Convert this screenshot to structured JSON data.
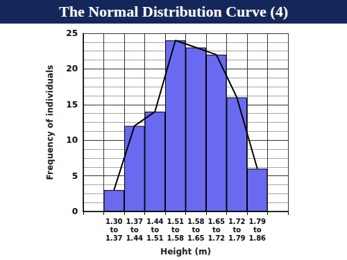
{
  "chart_data": {
    "type": "bar",
    "title": "The Normal Distribution Curve (4)",
    "x_label": "Height (m)",
    "y_label": "Frequency of individuals",
    "categories": [
      null,
      "1.30\nto\n1.37",
      "1.37\nto\n1.44",
      "1.44\nto\n1.51",
      "1.51\nto\n1.58",
      "1.58\nto\n1.65",
      "1.65\nto\n1.72",
      "1.72\nto\n1.79",
      "1.79\nto\n1.86",
      null
    ],
    "series": [
      {
        "type": "bar",
        "color": "#6a6af0",
        "values": [
          null,
          3,
          12,
          14,
          24,
          23,
          22,
          16,
          6,
          null
        ]
      },
      {
        "type": "line",
        "color": "#000000",
        "values": [
          null,
          3,
          12,
          14,
          24,
          23,
          22,
          16,
          6,
          null
        ]
      }
    ],
    "ylim": [
      0,
      25
    ],
    "yticks": [
      0,
      5,
      10,
      15,
      20,
      25
    ],
    "grid": true
  }
}
